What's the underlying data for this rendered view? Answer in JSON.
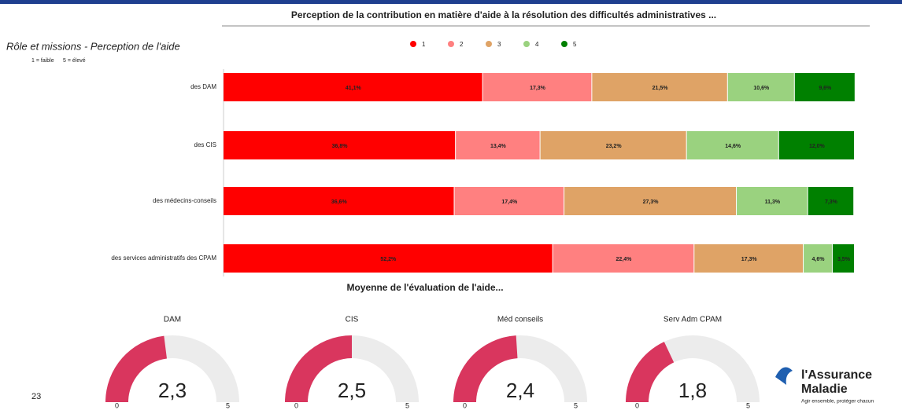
{
  "page": {
    "title": "Perception de la contribution en matière d'aide à la résolution des difficultés administratives ...",
    "page_number": "23",
    "logo": {
      "line1": "l'Assurance",
      "line2": "Maladie",
      "tagline": "Agir ensemble, protéger chacun"
    }
  },
  "chart_data": [
    {
      "type": "stacked_barh",
      "title": "Rôle et missions - Perception de l'aide",
      "scale_notes": [
        "1 = faible",
        "5 = élevé"
      ],
      "categories": [
        "des DAM",
        "des CIS",
        "des médecins-conseils",
        "des services administratifs des CPAM"
      ],
      "series": [
        {
          "name": "1",
          "color": "#ff0000",
          "values": [
            41.1,
            36.8,
            36.6,
            52.2
          ],
          "value_labels": [
            "41,1%",
            "36,8%",
            "36,6%",
            "52,2%"
          ]
        },
        {
          "name": "2",
          "color": "#ff8080",
          "values": [
            17.3,
            13.4,
            17.4,
            22.4
          ],
          "value_labels": [
            "17,3%",
            "13,4%",
            "17,4%",
            "22,4%"
          ]
        },
        {
          "name": "3",
          "color": "#dfa366",
          "values": [
            21.5,
            23.2,
            27.3,
            17.3
          ],
          "value_labels": [
            "21,5%",
            "23,2%",
            "27,3%",
            "17,3%"
          ]
        },
        {
          "name": "4",
          "color": "#9ad27f",
          "values": [
            10.6,
            14.6,
            11.3,
            4.6
          ],
          "value_labels": [
            "10,6%",
            "14,6%",
            "11,3%",
            "4,6%"
          ]
        },
        {
          "name": "5",
          "color": "#008000",
          "values": [
            9.6,
            12.0,
            7.3,
            3.5
          ],
          "value_labels": [
            "9,6%",
            "12,0%",
            "7,3%",
            "3,5%"
          ]
        }
      ],
      "xlim": [
        0,
        100
      ],
      "legend": "top"
    },
    {
      "type": "gauge",
      "title": "Moyenne de l'évaluation de l'aide...",
      "categories": [
        "DAM",
        "CIS",
        "Méd conseils",
        "Serv Adm CPAM"
      ],
      "values": [
        2.3,
        2.5,
        2.4,
        1.8
      ],
      "value_labels": [
        "2,3",
        "2,5",
        "2,4",
        "1,8"
      ],
      "lim": [
        0,
        5
      ],
      "ticks": [
        0,
        5
      ],
      "color": "#d9365e",
      "track_color": "#ececec"
    }
  ]
}
